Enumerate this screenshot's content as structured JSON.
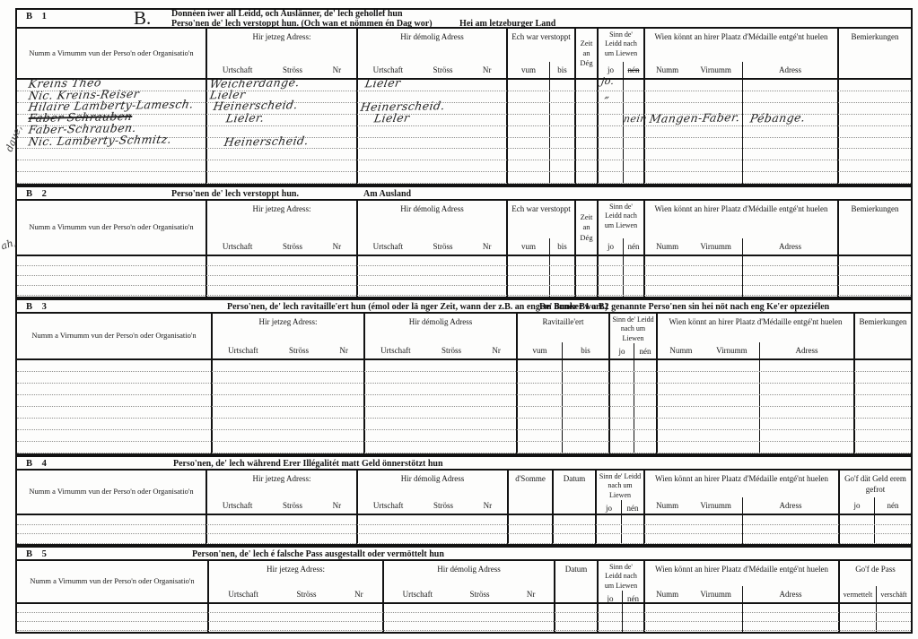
{
  "sections": {
    "b1": {
      "id": "B 1",
      "big": "B.",
      "title1": "Donnéen iwer all Leidd, och Auslänner, de' lech gehollef hun",
      "title2": "Perso'nen de' lech verstoppt hun. (Och wan et nömmen én Dag wor)",
      "suffix": "Hei am letzeburger Land"
    },
    "b2": {
      "id": "B 2",
      "title": "Perso'nen de' lech verstoppt hun.",
      "suffix": "Am Ausland"
    },
    "b3": {
      "id": "B 3",
      "title": "Perso'nen, de' lech ravitaille'ert hun (émol oder lä nger Zeit, wann der z.B. an engem Bunker wort.)",
      "suffix": "De' önner B1 a B2 genannte Perso'nen sin hei nöt nach eng Ke'er opzeziélen"
    },
    "b4": {
      "id": "B 4",
      "title": "Perso'nen, de' lech während Erer Illégalitét matt Geld önnerstötzt hun"
    },
    "b5": {
      "id": "B 5",
      "title": "Person'nen, de' lech é falsche Pass ausgestallt oder vermöttelt hun"
    }
  },
  "cols": {
    "name": "Numm a Virnumm vun der Perso'n oder Organisatio'n",
    "jetzeg": "Hir jetzeg Adress:",
    "demolig": "Hir démolig Adress",
    "urtschaft": "Urtschaft",
    "stross": "Ströss",
    "nr": "Nr",
    "verstoppt": "Ech war verstoppt",
    "vum": "vum",
    "bis": "bis",
    "zeit": "Zeit an Dég",
    "sinn": "Sinn de' Leidd nach um Liewen",
    "jo": "jo",
    "nen": "nén",
    "ravitailleert": "Ravitaille'ert",
    "somme": "d'Somme",
    "datum": "Datum",
    "wien": "Wien könnt an hirer Plaatz d'Médaille entgé'nt huelen",
    "numm": "Numm",
    "virnumm": "Virnumm",
    "adress": "Adress",
    "bem": "Bemierkungen",
    "gof_geld": "Go'f dät Geld erem gefrot",
    "gof_pass": "Go'f de Pass",
    "vermettelt": "vermettelt",
    "verschaft": "verschäft"
  },
  "handwriting": {
    "rows": [
      {
        "name": "Kreins Theo",
        "jetzeg": "Weicherdange.",
        "demolig": "Lieler",
        "jo": "jo."
      },
      {
        "name": "Nic. Kreins-Reiser",
        "jetzeg": "Lieler",
        "jo": "„"
      },
      {
        "name": "Hilaire Lamberty-Lamesch.",
        "jetzeg": "Heinerscheid.",
        "demolig": "Heinerscheid."
      },
      {
        "name": "Faber Schrauben",
        "jetzeg": "Lieler.",
        "demolig": "Lieler",
        "nen": "nein",
        "wien_numm": "Mangen-Faber.",
        "wien_adress": "Pébange."
      },
      {
        "name": "Faber-Schrauben."
      },
      {
        "name": "Nic. Lamberty-Schmitz.",
        "jetzeg": "Heinerscheid."
      }
    ],
    "margin_top": "daue,",
    "margin_mid": "ah,"
  }
}
